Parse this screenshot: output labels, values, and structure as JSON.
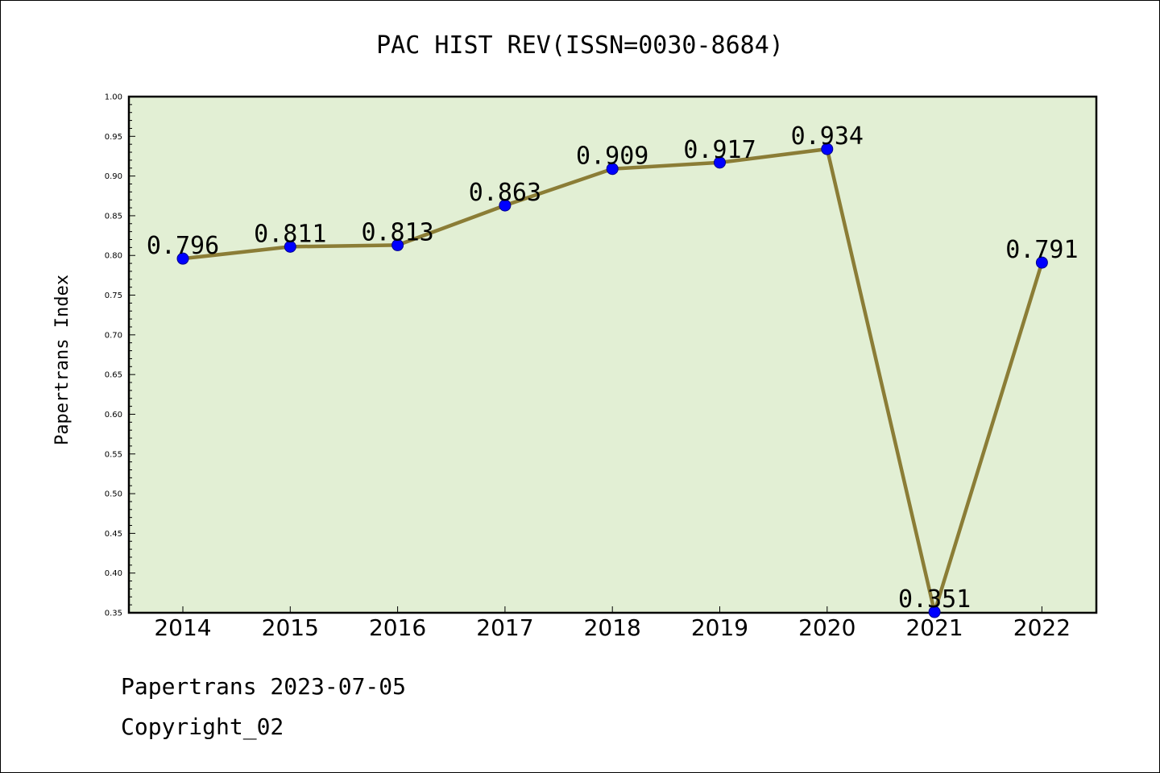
{
  "chart_data": {
    "type": "line",
    "title": "PAC HIST REV(ISSN=0030-8684)",
    "ylabel": "Papertrans Index",
    "xlabel": "",
    "categories": [
      "2014",
      "2015",
      "2016",
      "2017",
      "2018",
      "2019",
      "2020",
      "2021",
      "2022"
    ],
    "series": [
      {
        "values": [
          0.796,
          0.811,
          0.813,
          0.863,
          0.909,
          0.917,
          0.934,
          0.351,
          0.791
        ],
        "labels": [
          "0.796",
          "0.811",
          "0.813",
          "0.863",
          "0.909",
          "0.917",
          "0.934",
          "0.351",
          "0.791"
        ]
      }
    ],
    "ylim": [
      0.35,
      1.0
    ],
    "yticks": [
      "0.35",
      "0.40",
      "0.45",
      "0.50",
      "0.55",
      "0.60",
      "0.65",
      "0.70",
      "0.75",
      "0.80",
      "0.85",
      "0.90",
      "0.95",
      "1.00"
    ],
    "grid": false,
    "colors": {
      "plot_bg": "#e2efd4",
      "line": "#8b7d36",
      "marker": "#0000ff",
      "marker_edge": "#00008b"
    }
  },
  "footer": {
    "line1": "Papertrans 2023-07-05",
    "line2": "Copyright_02"
  }
}
